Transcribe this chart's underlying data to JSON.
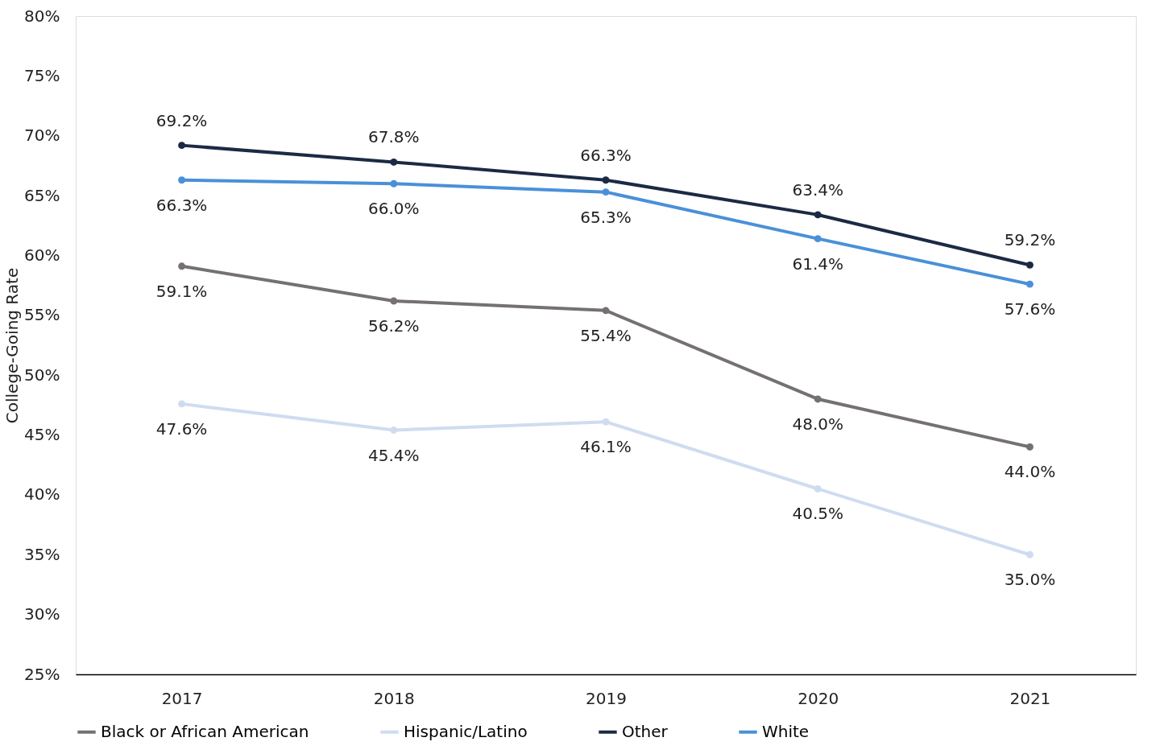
{
  "chart_data": {
    "type": "line",
    "ylabel": "College-Going Rate",
    "categories": [
      "2017",
      "2018",
      "2019",
      "2020",
      "2021"
    ],
    "series": [
      {
        "name": "Black or African American",
        "color": "#767171",
        "values": [
          59.1,
          56.2,
          55.4,
          48.0,
          44.0
        ],
        "value_labels": [
          "59.1%",
          "56.2%",
          "55.4%",
          "48.0%",
          "44.0%"
        ]
      },
      {
        "name": "Hispanic/Latino",
        "color": "#cfdcf0",
        "values": [
          47.6,
          45.4,
          46.1,
          40.5,
          35.0
        ],
        "value_labels": [
          "47.6%",
          "45.4%",
          "46.1%",
          "40.5%",
          "35.0%"
        ]
      },
      {
        "name": "Other",
        "color": "#1b2a44",
        "values": [
          69.2,
          67.8,
          66.3,
          63.4,
          59.2
        ],
        "value_labels": [
          "69.2%",
          "67.8%",
          "66.3%",
          "63.4%",
          "59.2%"
        ]
      },
      {
        "name": "White",
        "color": "#4a90d9",
        "values": [
          66.3,
          66.0,
          65.3,
          61.4,
          57.6
        ],
        "value_labels": [
          "66.3%",
          "66.0%",
          "65.3%",
          "61.4%",
          "57.6%"
        ]
      }
    ],
    "ylim": [
      25,
      80
    ],
    "yticks": [
      {
        "value": 25,
        "label": "25%"
      },
      {
        "value": 30,
        "label": "30%"
      },
      {
        "value": 35,
        "label": "35%"
      },
      {
        "value": 40,
        "label": "40%"
      },
      {
        "value": 45,
        "label": "45%"
      },
      {
        "value": 50,
        "label": "50%"
      },
      {
        "value": 55,
        "label": "55%"
      },
      {
        "value": 60,
        "label": "60%"
      },
      {
        "value": 65,
        "label": "65%"
      },
      {
        "value": 70,
        "label": "70%"
      },
      {
        "value": 75,
        "label": "75%"
      },
      {
        "value": 80,
        "label": "80%"
      }
    ],
    "grid": false,
    "legend": "bottom",
    "marker": "circle",
    "line_style": "solid"
  }
}
